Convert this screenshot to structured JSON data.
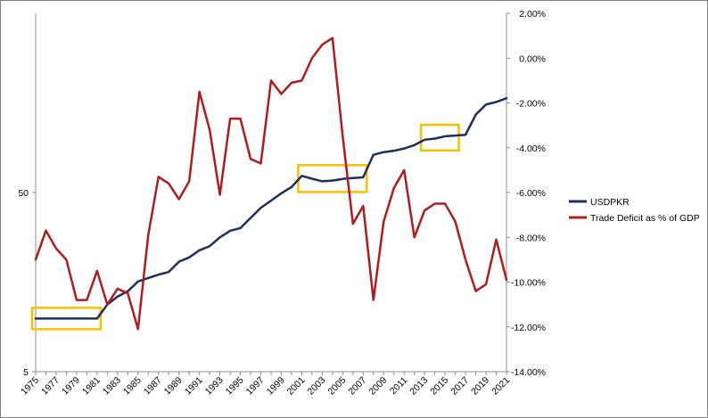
{
  "chart_data": {
    "type": "line",
    "title": "",
    "x": [
      1975,
      1976,
      1977,
      1978,
      1979,
      1980,
      1981,
      1982,
      1983,
      1984,
      1985,
      1986,
      1987,
      1988,
      1989,
      1990,
      1991,
      1992,
      1993,
      1994,
      1995,
      1996,
      1997,
      1998,
      1999,
      2000,
      2001,
      2002,
      2003,
      2004,
      2005,
      2006,
      2007,
      2008,
      2009,
      2010,
      2011,
      2012,
      2013,
      2014,
      2015,
      2016,
      2017,
      2018,
      2019,
      2020,
      2021
    ],
    "x_tick_labels": [
      "1975",
      "1977",
      "1979",
      "1981",
      "1983",
      "1985",
      "1987",
      "1989",
      "1991",
      "1993",
      "1995",
      "1997",
      "1999",
      "2001",
      "2003",
      "2005",
      "2007",
      "2009",
      "2011",
      "2013",
      "2015",
      "2017",
      "2019",
      "2021"
    ],
    "left_axis": {
      "scale": "log",
      "range": [
        5,
        500
      ],
      "tick_labels": [
        "5",
        "50"
      ],
      "tick_values": [
        5,
        50
      ]
    },
    "right_axis": {
      "range": [
        -14,
        2
      ],
      "unit": "%",
      "tick_labels": [
        "2.00%",
        "0.00%",
        "-2.00%",
        "-4.00%",
        "-6.00%",
        "-8.00%",
        "-10.00%",
        "-12.00%",
        "-14.00%"
      ],
      "tick_values": [
        2,
        0,
        -2,
        -4,
        -6,
        -8,
        -10,
        -12,
        -14
      ]
    },
    "series": [
      {
        "name": "USDPKR",
        "axis": "left",
        "color": "#1f2d5c",
        "values": [
          9.9,
          9.9,
          9.9,
          9.9,
          9.9,
          9.9,
          9.9,
          11.85,
          13.12,
          14.05,
          15.93,
          16.65,
          17.4,
          18.0,
          20.54,
          21.71,
          23.8,
          25.08,
          28.11,
          30.57,
          31.64,
          36.08,
          41.11,
          45.05,
          49.5,
          53.65,
          61.93,
          59.72,
          57.75,
          58.26,
          59.51,
          60.27,
          60.74,
          81.2,
          84.0,
          85.5,
          88.0,
          92.0,
          98.5,
          100.0,
          103.0,
          104.0,
          105.0,
          136.0,
          155.0,
          160.0,
          168.0
        ]
      },
      {
        "name": "Trade Deficit as % of GDP",
        "axis": "right",
        "color": "#b01c1c",
        "values": [
          -9.0,
          -7.7,
          -8.5,
          -9.0,
          -10.8,
          -10.8,
          -9.5,
          -11.0,
          -10.3,
          -10.5,
          -12.1,
          -7.9,
          -5.3,
          -5.6,
          -6.3,
          -5.5,
          -1.5,
          -3.2,
          -6.1,
          -2.7,
          -2.7,
          -4.5,
          -4.7,
          -1.0,
          -1.6,
          -1.1,
          -1.0,
          0.0,
          0.6,
          0.9,
          -3.5,
          -7.4,
          -6.6,
          -10.8,
          -7.3,
          -5.8,
          -5.0,
          -8.0,
          -6.8,
          -6.5,
          -6.5,
          -7.3,
          -9.0,
          -10.4,
          -10.1,
          -8.1,
          -9.9
        ]
      }
    ],
    "legend": {
      "position": "right",
      "entries": [
        "USDPKR",
        "Trade Deficit as % of GDP"
      ]
    },
    "annotations": [
      {
        "type": "highlight-box",
        "color": "#f2c200",
        "x_range": [
          1975,
          1981
        ]
      },
      {
        "type": "highlight-box",
        "color": "#f2c200",
        "x_range": [
          2001,
          2007
        ]
      },
      {
        "type": "highlight-box",
        "color": "#f2c200",
        "x_range": [
          2013,
          2016
        ]
      }
    ],
    "grid": false
  }
}
